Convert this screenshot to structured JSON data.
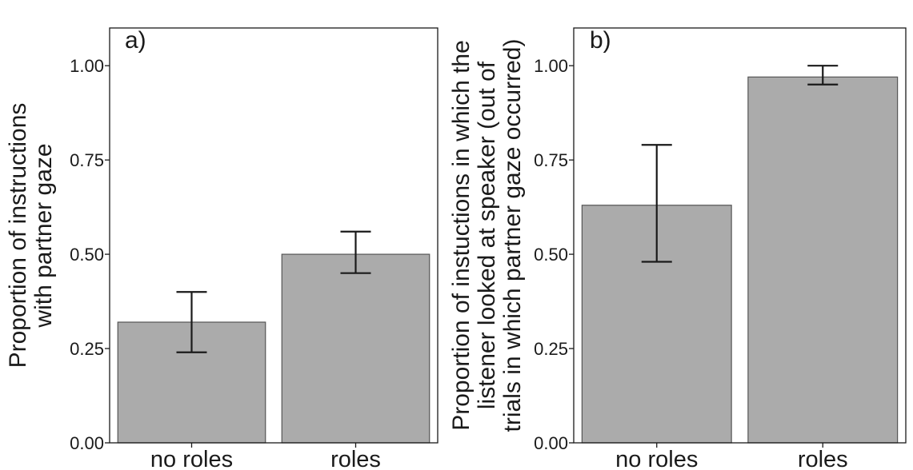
{
  "chart_data": [
    {
      "type": "bar",
      "panel_label": "a)",
      "categories": [
        "no roles",
        "roles"
      ],
      "values": [
        0.32,
        0.5
      ],
      "error_low": [
        0.24,
        0.45
      ],
      "error_high": [
        0.4,
        0.56
      ],
      "ylabel_lines": [
        "Proportion of instructions",
        "with partner gaze"
      ],
      "ylim": [
        0,
        1.1
      ],
      "yticks": [
        "0.00",
        "0.25",
        "0.50",
        "0.75",
        "1.00"
      ],
      "grid": false,
      "colors": {
        "bar": "#ababab",
        "bar_edge": "#555555",
        "error": "#1a1a1a"
      }
    },
    {
      "type": "bar",
      "panel_label": "b)",
      "categories": [
        "no roles",
        "roles"
      ],
      "values": [
        0.63,
        0.97
      ],
      "error_low": [
        0.48,
        0.95
      ],
      "error_high": [
        0.79,
        1.0
      ],
      "ylabel_lines": [
        "Proportion of instuctions in which the",
        "listener looked at speaker (out of",
        "trials in which partner gaze occurred)"
      ],
      "ylim": [
        0,
        1.1
      ],
      "yticks": [
        "0.00",
        "0.25",
        "0.50",
        "0.75",
        "1.00"
      ],
      "grid": false,
      "colors": {
        "bar": "#ababab",
        "bar_edge": "#555555",
        "error": "#1a1a1a"
      }
    }
  ]
}
